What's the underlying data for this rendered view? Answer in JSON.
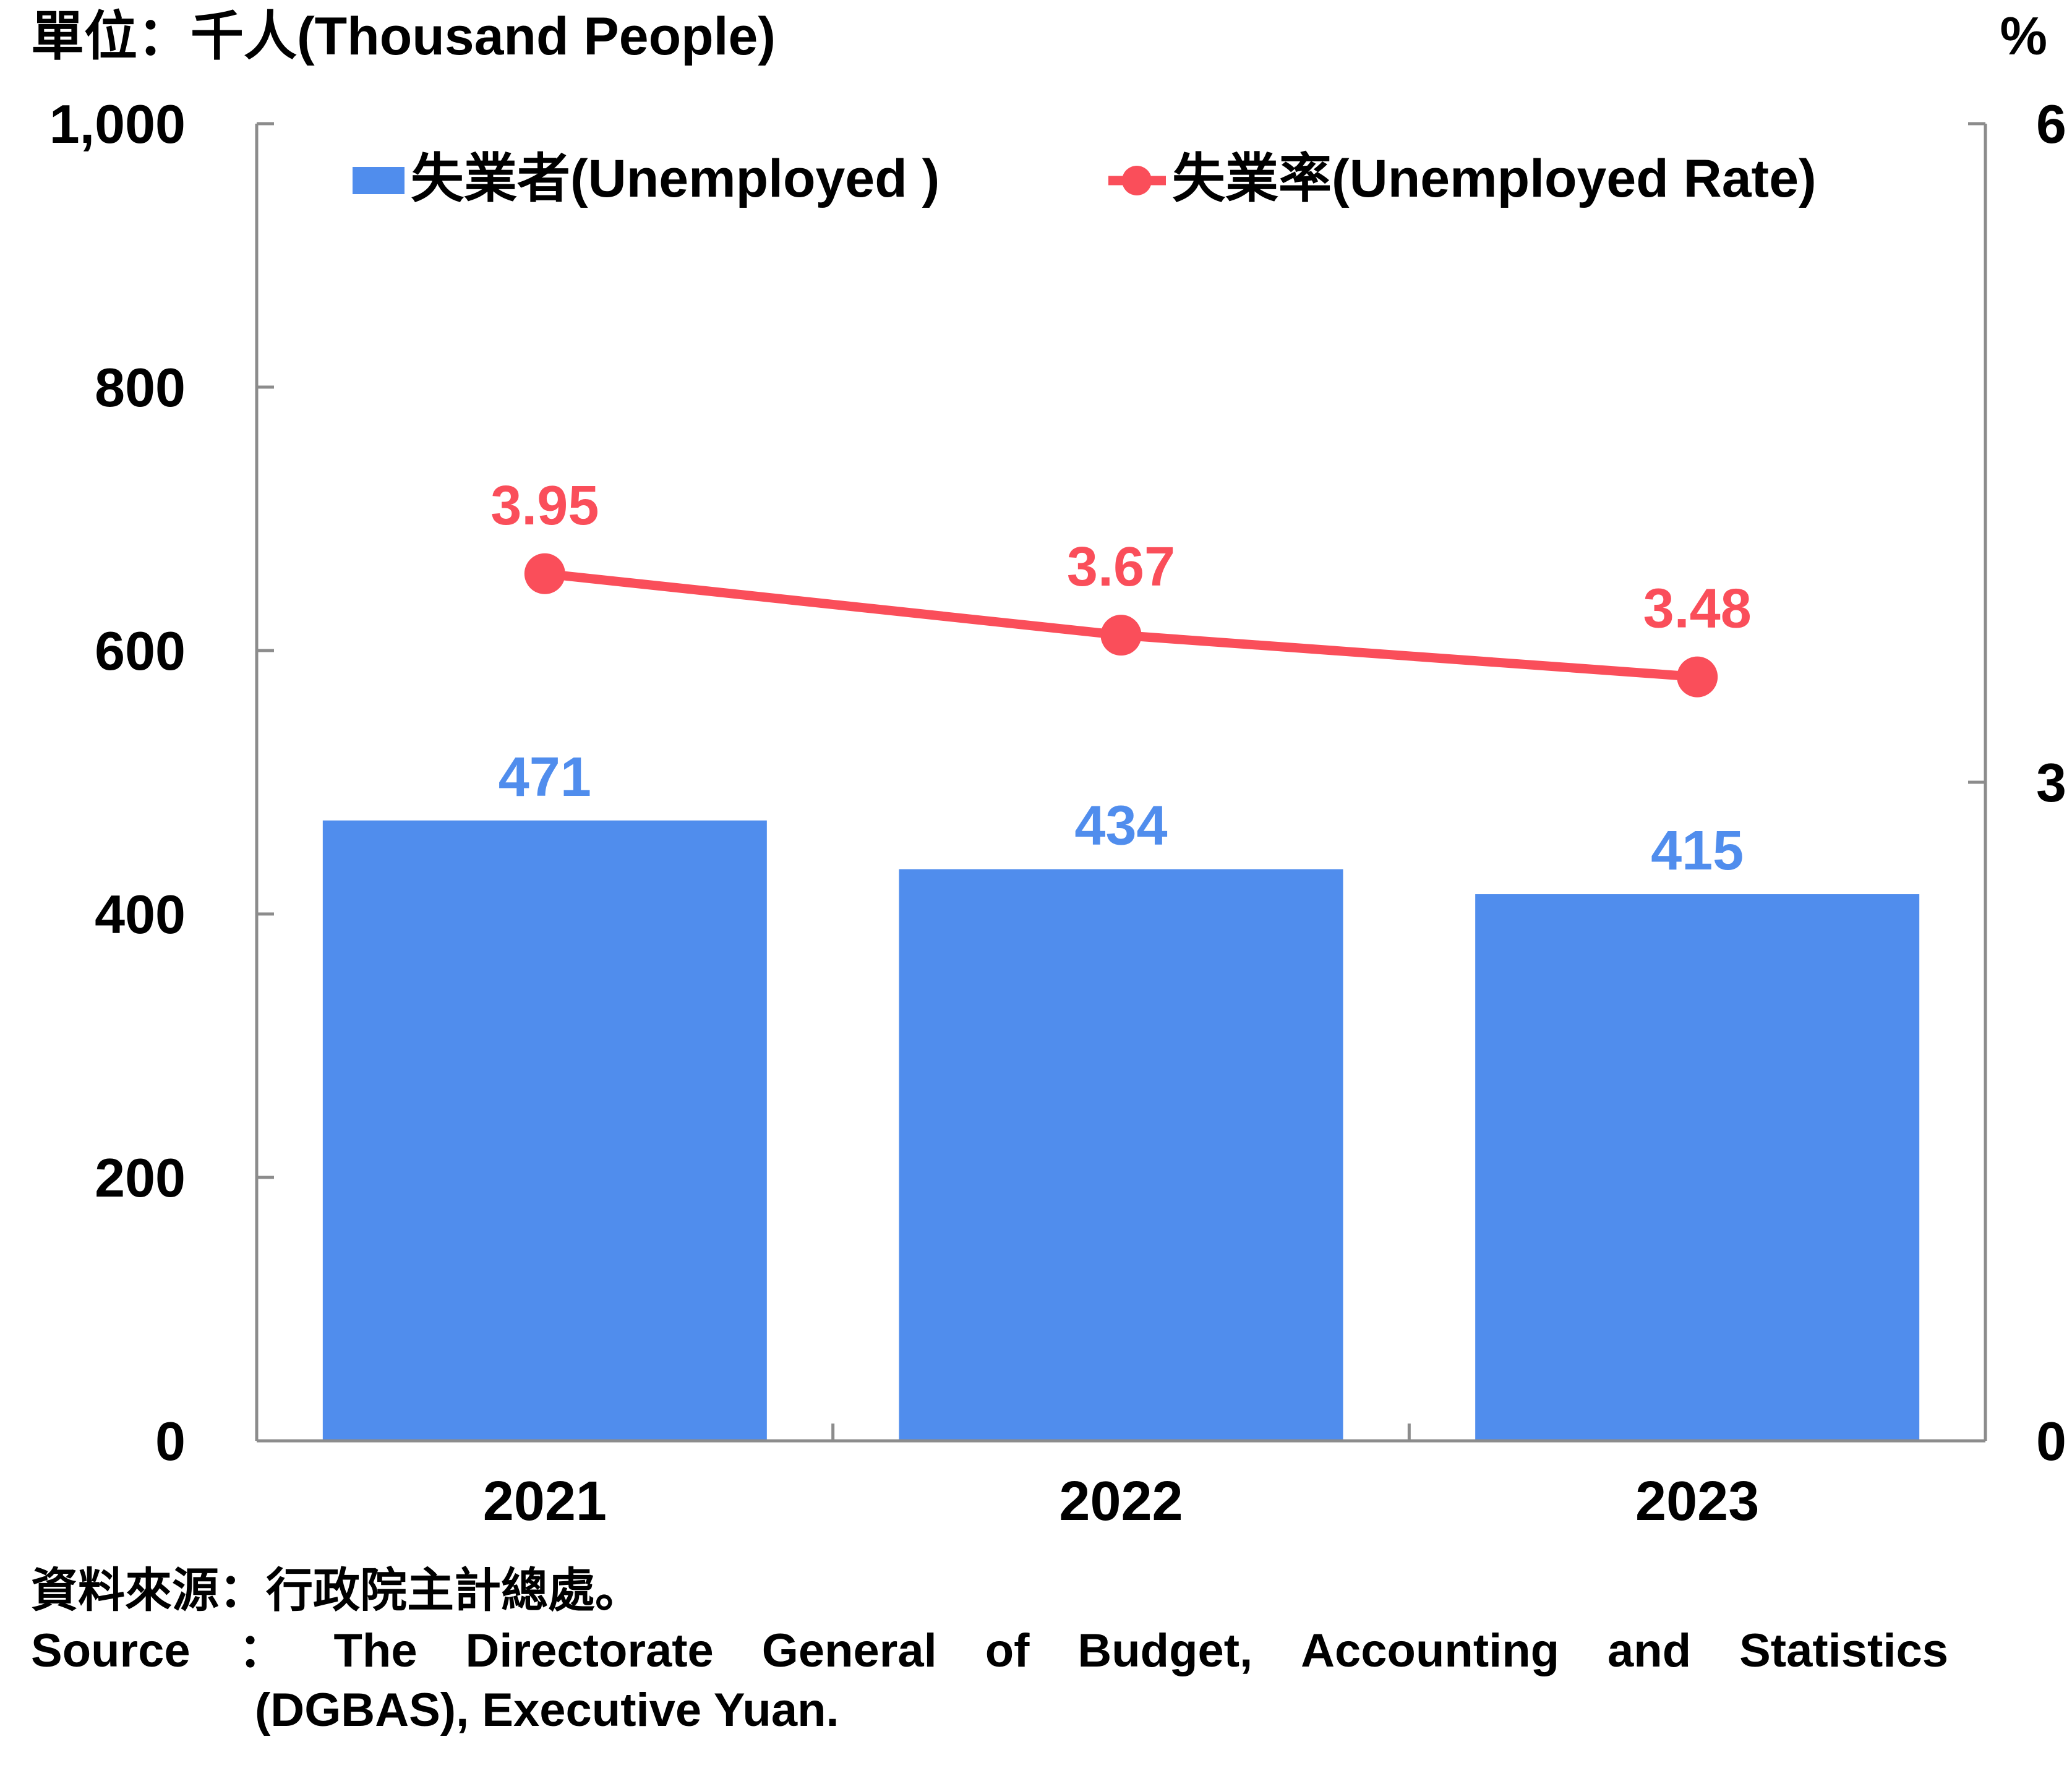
{
  "chart_data": {
    "type": "bar",
    "categories": [
      "2021",
      "2022",
      "2023"
    ],
    "y_left": {
      "label": "單位：千人(Thousand People)",
      "min": 0,
      "max": 1000,
      "ticks": [
        "0",
        "200",
        "400",
        "600",
        "800",
        "1,000"
      ]
    },
    "y_right": {
      "label": "%",
      "min": 0,
      "max": 6,
      "ticks": [
        "0",
        "3",
        "6"
      ]
    },
    "series": [
      {
        "name": "失業者(Unemployed )",
        "type": "bar",
        "axis": "left",
        "values": [
          471,
          434,
          415
        ],
        "labels": [
          "471",
          "434",
          "415"
        ]
      },
      {
        "name": "失業率(Unemployed Rate)",
        "type": "line",
        "axis": "right",
        "values": [
          3.95,
          3.67,
          3.48
        ],
        "labels": [
          "3.95",
          "3.67",
          "3.48"
        ]
      }
    ],
    "legend_position": "top",
    "grid": false
  },
  "colors": {
    "bar": "#508ded",
    "line": "#fa4e5a",
    "axis": "#8c8c8c",
    "text": "#000000"
  },
  "source": {
    "zh": "資料來源：行政院主計總處。",
    "en_words": [
      "Source",
      "：",
      "The",
      "Directorate",
      "General",
      "of",
      "Budget,",
      "Accounting",
      "and",
      "Statistics"
    ],
    "en_line2": "(DGBAS), Executive Yuan."
  }
}
